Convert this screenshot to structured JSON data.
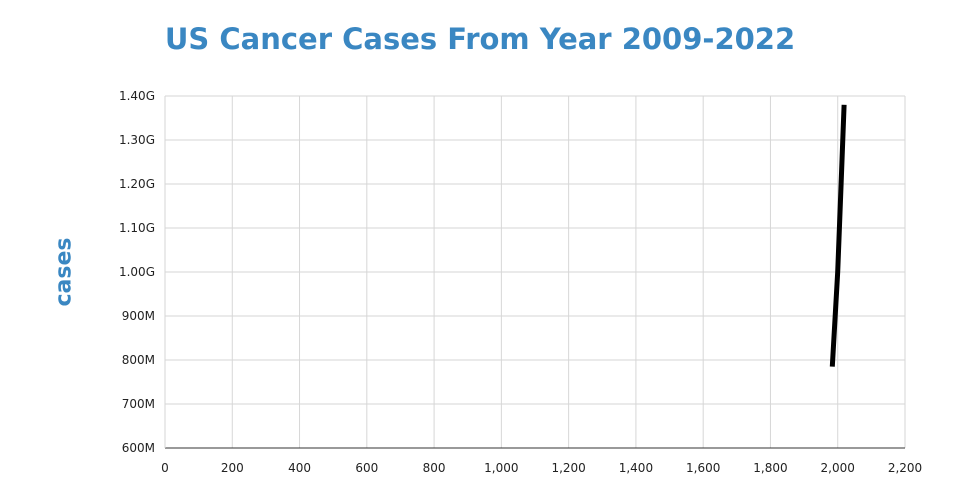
{
  "chart_data": {
    "type": "line",
    "title": "US Cancer Cases From Year 2009-2022",
    "xlabel": "",
    "ylabel": "cases",
    "x_ticks": [
      0,
      200,
      400,
      600,
      800,
      1000,
      1200,
      1400,
      1600,
      1800,
      2000,
      2200
    ],
    "x_tick_labels": [
      "0",
      "200",
      "400",
      "600",
      "800",
      "1,000",
      "1,200",
      "1,400",
      "1,600",
      "1,800",
      "2,000",
      "2,200"
    ],
    "y_ticks": [
      600000000,
      700000000,
      800000000,
      900000000,
      1000000000,
      1100000000,
      1200000000,
      1300000000,
      1400000000
    ],
    "y_tick_labels": [
      "600M",
      "700M",
      "800M",
      "900M",
      "1.00G",
      "1.10G",
      "1.20G",
      "1.30G",
      "1.40G"
    ],
    "xlim": [
      0,
      2200
    ],
    "ylim": [
      600000000,
      1400000000
    ],
    "grid": true,
    "series": [
      {
        "color": "#000000",
        "x": [
          1984,
          2000,
          2010,
          2019
        ],
        "y": [
          785000000,
          1000000000,
          1200000000,
          1380000000
        ]
      }
    ]
  }
}
